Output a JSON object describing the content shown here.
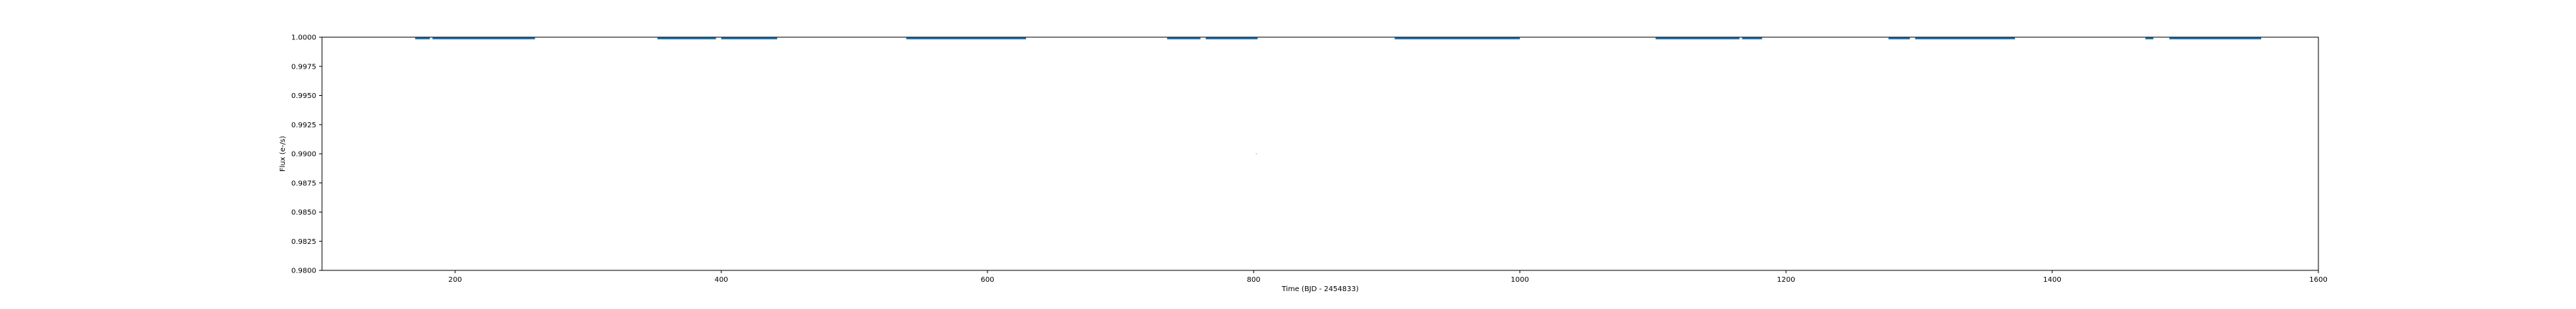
{
  "chart_data": {
    "type": "scatter",
    "title": "",
    "xlabel": "Time (BJD - 2454833)",
    "ylabel": "Flux (e-/s)",
    "xlim": [
      100,
      1600
    ],
    "ylim": [
      0.98,
      1.0
    ],
    "grid": false,
    "x_ticks": [
      200,
      400,
      600,
      800,
      1000,
      1200,
      1400,
      1600
    ],
    "x_tick_labels": [
      "200",
      "400",
      "600",
      "800",
      "1000",
      "1200",
      "1400",
      "1600"
    ],
    "y_ticks": [
      0.98,
      0.9825,
      0.985,
      0.9875,
      0.99,
      0.9925,
      0.995,
      0.9975,
      1.0
    ],
    "y_tick_labels": [
      "0.9800",
      "0.9825",
      "0.9850",
      "0.9875",
      "0.9900",
      "0.9925",
      "0.9950",
      "0.9975",
      "1.0000"
    ],
    "series": [
      {
        "color": "#1f77b4",
        "segments": [
          {
            "x_start": 170,
            "x_end": 181,
            "y": 1.0
          },
          {
            "x_start": 183,
            "x_end": 260,
            "y": 1.0
          },
          {
            "x_start": 352,
            "x_end": 396,
            "y": 1.0
          },
          {
            "x_start": 400,
            "x_end": 442,
            "y": 1.0
          },
          {
            "x_start": 539,
            "x_end": 629,
            "y": 1.0
          },
          {
            "x_start": 735,
            "x_end": 760,
            "y": 1.0
          },
          {
            "x_start": 764,
            "x_end": 803,
            "y": 1.0
          },
          {
            "x_start": 906,
            "x_end": 1000,
            "y": 1.0
          },
          {
            "x_start": 1102,
            "x_end": 1165,
            "y": 1.0
          },
          {
            "x_start": 1167,
            "x_end": 1182,
            "y": 1.0
          },
          {
            "x_start": 1277,
            "x_end": 1293,
            "y": 1.0
          },
          {
            "x_start": 1297,
            "x_end": 1372,
            "y": 1.0
          },
          {
            "x_start": 1470,
            "x_end": 1476,
            "y": 1.0
          },
          {
            "x_start": 1488,
            "x_end": 1557,
            "y": 1.0
          }
        ],
        "outliers": [
          {
            "x": 802,
            "y": 0.99
          }
        ]
      }
    ]
  }
}
